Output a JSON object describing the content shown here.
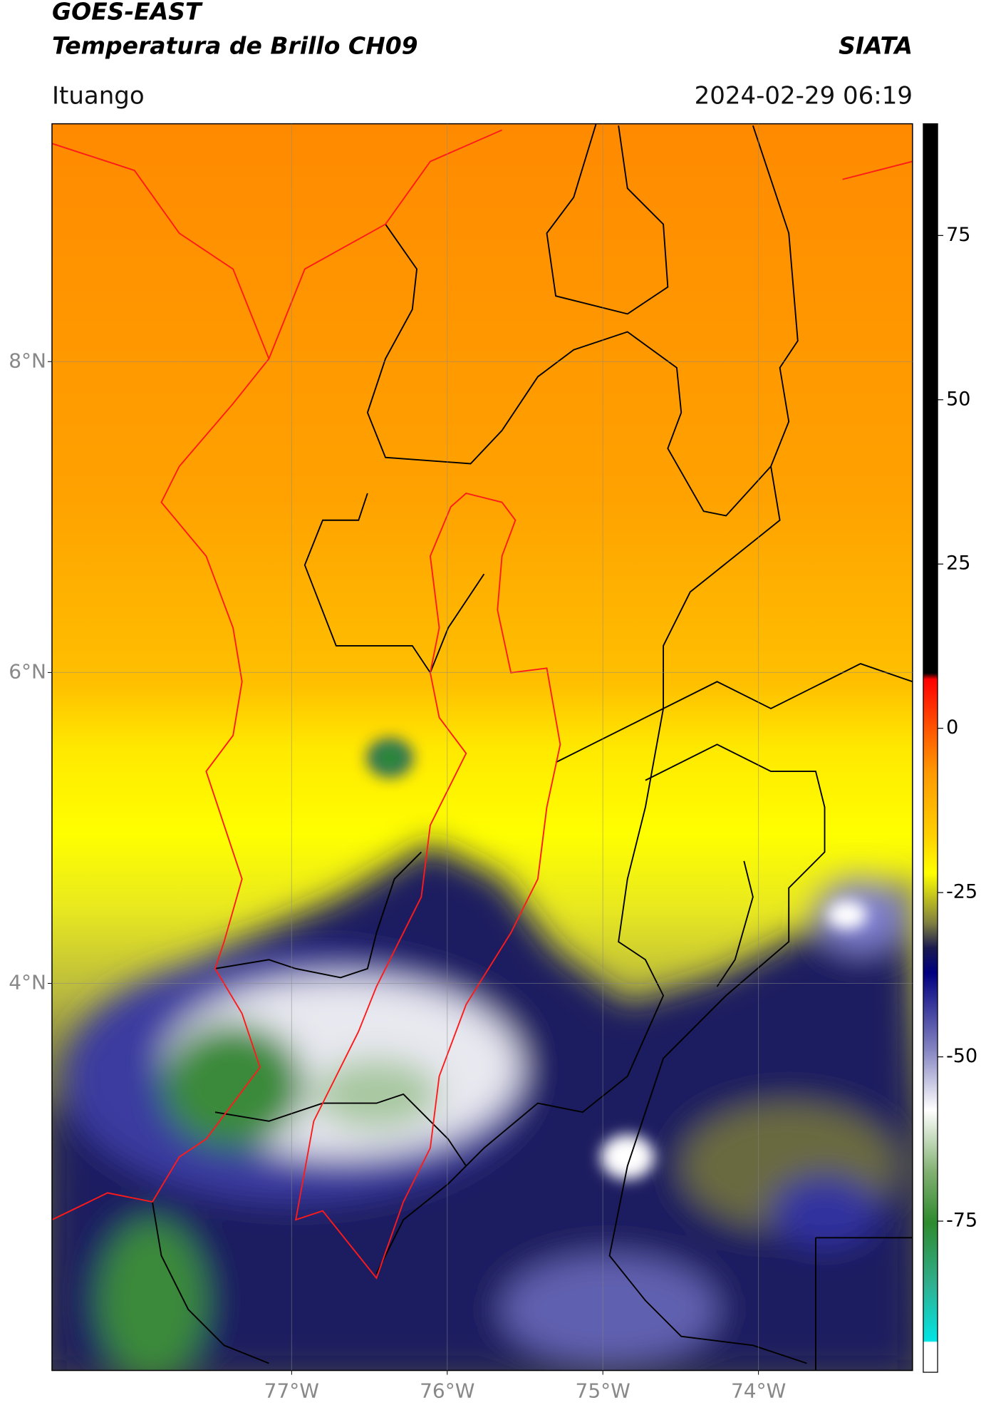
{
  "header": {
    "satellite": "GOES-EAST",
    "product": "Temperatura de Brillo CH09",
    "organization": "SIATA",
    "location": "Ituango",
    "datetime": "2024-02-29 06:19"
  },
  "map": {
    "xlim": [
      -78.54,
      -73.01
    ],
    "ylim": [
      1.51,
      9.53
    ],
    "xticks": [
      {
        "value": -77,
        "label": "77°W"
      },
      {
        "value": -76,
        "label": "76°W"
      },
      {
        "value": -75,
        "label": "75°W"
      },
      {
        "value": -74,
        "label": "74°W"
      }
    ],
    "yticks": [
      {
        "value": 4,
        "label": "4°N"
      },
      {
        "value": 6,
        "label": "6°N"
      },
      {
        "value": 8,
        "label": "8°N"
      }
    ],
    "grid": true
  },
  "colorbar": {
    "lim": [
      -98,
      92
    ],
    "ticks": [
      -75,
      -50,
      -25,
      0,
      25,
      50,
      75
    ]
  }
}
